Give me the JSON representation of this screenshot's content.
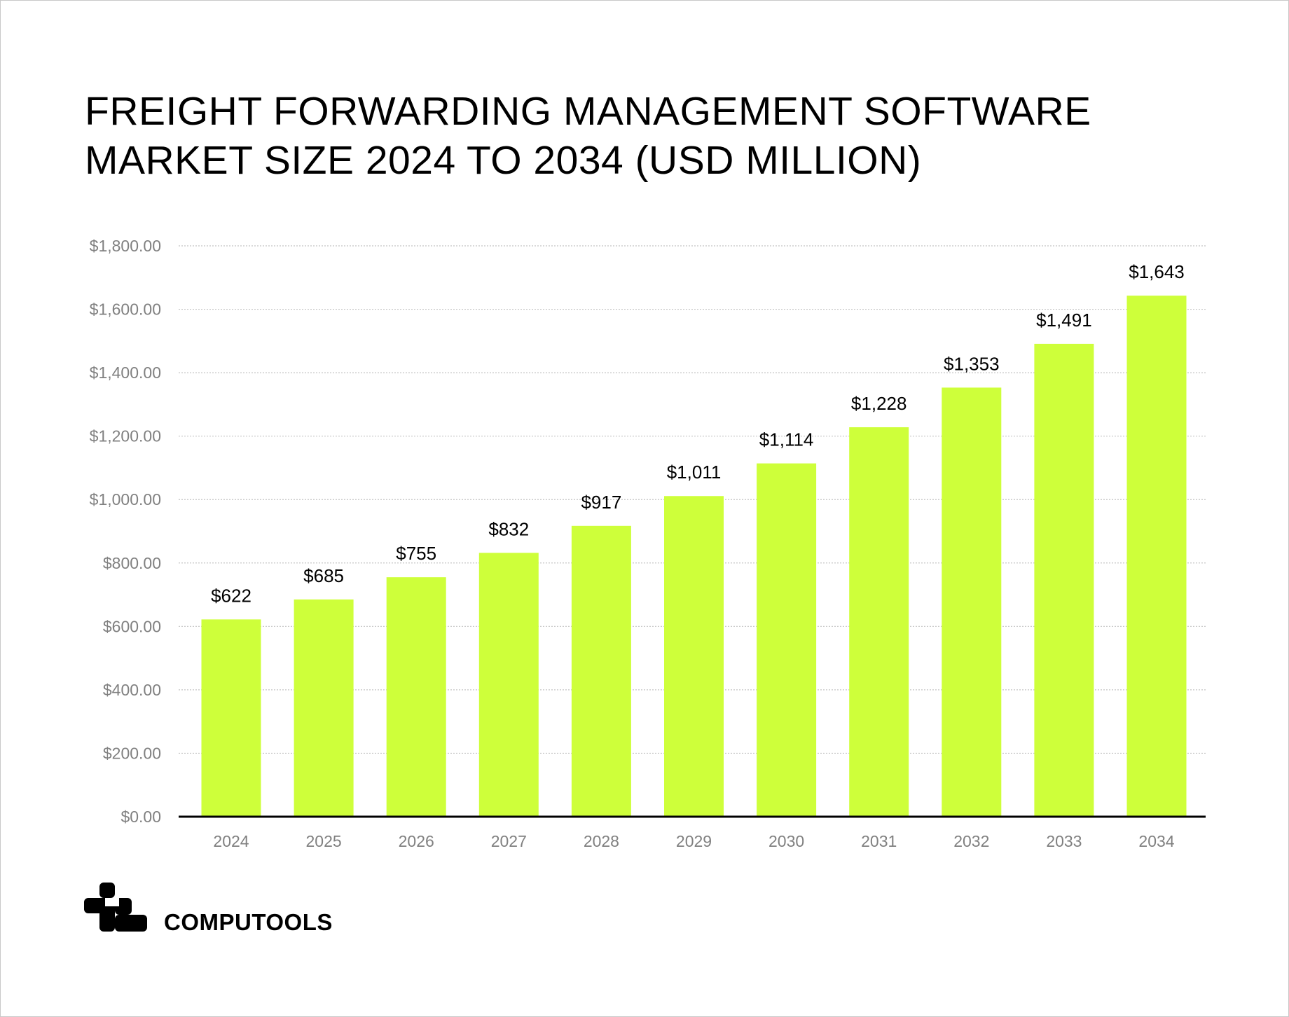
{
  "chart_data": {
    "type": "bar",
    "title": "FREIGHT FORWARDING MANAGEMENT SOFTWARE MARKET SIZE 2024 TO 2034 (USD MILLION)",
    "title_lines": [
      "FREIGHT FORWARDING MANAGEMENT SOFTWARE",
      "MARKET SIZE 2024 TO 2034 (USD MILLION)"
    ],
    "categories": [
      "2024",
      "2025",
      "2026",
      "2027",
      "2028",
      "2029",
      "2030",
      "2031",
      "2032",
      "2033",
      "2034"
    ],
    "values": [
      622,
      685,
      755,
      832,
      917,
      1011,
      1114,
      1228,
      1353,
      1491,
      1643
    ],
    "data_labels": [
      "$622",
      "$685",
      "$755",
      "$832",
      "$917",
      "$1,011",
      "$1,114",
      "$1,228",
      "$1,353",
      "$1,491",
      "$1,643"
    ],
    "xlabel": "",
    "ylabel": "",
    "ylim": [
      0,
      1800
    ],
    "yticks": [
      0,
      200,
      400,
      600,
      800,
      1000,
      1200,
      1400,
      1600,
      1800
    ],
    "ytick_labels": [
      "$0.00",
      "$200.00",
      "$400.00",
      "$600.00",
      "$800.00",
      "$1,000.00",
      "$1,200.00",
      "$1,400.00",
      "$1,600.00",
      "$1,800.00"
    ],
    "grid": true,
    "bar_color": "#ceff3a",
    "legend": "none"
  },
  "brand": {
    "name": "COMPUTOOLS",
    "logo_icon": "computools-logo-icon"
  }
}
